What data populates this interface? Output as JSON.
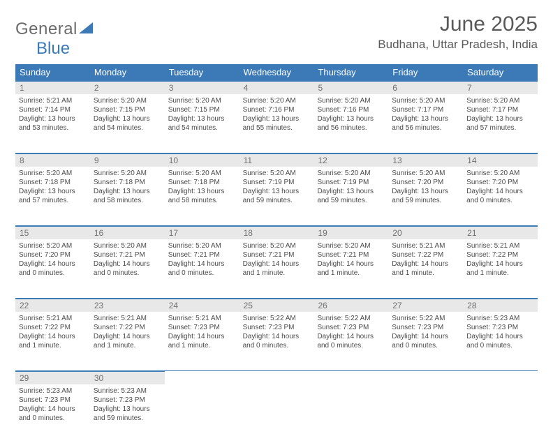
{
  "logo": {
    "text1": "General",
    "text2": "Blue"
  },
  "title": "June 2025",
  "location": "Budhana, Uttar Pradesh, India",
  "colors": {
    "header_bg": "#3b79b7",
    "header_text": "#ffffff",
    "daynum_bg": "#e8e8e8",
    "daynum_border": "#3b79b7",
    "body_text": "#4a4a4a",
    "title_text": "#595959",
    "logo_gray": "#6b6b6b",
    "logo_blue": "#3b79b7"
  },
  "weekdays": [
    "Sunday",
    "Monday",
    "Tuesday",
    "Wednesday",
    "Thursday",
    "Friday",
    "Saturday"
  ],
  "weeks": [
    [
      {
        "n": "1",
        "sr": "Sunrise: 5:21 AM",
        "ss": "Sunset: 7:14 PM",
        "d1": "Daylight: 13 hours",
        "d2": "and 53 minutes."
      },
      {
        "n": "2",
        "sr": "Sunrise: 5:20 AM",
        "ss": "Sunset: 7:15 PM",
        "d1": "Daylight: 13 hours",
        "d2": "and 54 minutes."
      },
      {
        "n": "3",
        "sr": "Sunrise: 5:20 AM",
        "ss": "Sunset: 7:15 PM",
        "d1": "Daylight: 13 hours",
        "d2": "and 54 minutes."
      },
      {
        "n": "4",
        "sr": "Sunrise: 5:20 AM",
        "ss": "Sunset: 7:16 PM",
        "d1": "Daylight: 13 hours",
        "d2": "and 55 minutes."
      },
      {
        "n": "5",
        "sr": "Sunrise: 5:20 AM",
        "ss": "Sunset: 7:16 PM",
        "d1": "Daylight: 13 hours",
        "d2": "and 56 minutes."
      },
      {
        "n": "6",
        "sr": "Sunrise: 5:20 AM",
        "ss": "Sunset: 7:17 PM",
        "d1": "Daylight: 13 hours",
        "d2": "and 56 minutes."
      },
      {
        "n": "7",
        "sr": "Sunrise: 5:20 AM",
        "ss": "Sunset: 7:17 PM",
        "d1": "Daylight: 13 hours",
        "d2": "and 57 minutes."
      }
    ],
    [
      {
        "n": "8",
        "sr": "Sunrise: 5:20 AM",
        "ss": "Sunset: 7:18 PM",
        "d1": "Daylight: 13 hours",
        "d2": "and 57 minutes."
      },
      {
        "n": "9",
        "sr": "Sunrise: 5:20 AM",
        "ss": "Sunset: 7:18 PM",
        "d1": "Daylight: 13 hours",
        "d2": "and 58 minutes."
      },
      {
        "n": "10",
        "sr": "Sunrise: 5:20 AM",
        "ss": "Sunset: 7:18 PM",
        "d1": "Daylight: 13 hours",
        "d2": "and 58 minutes."
      },
      {
        "n": "11",
        "sr": "Sunrise: 5:20 AM",
        "ss": "Sunset: 7:19 PM",
        "d1": "Daylight: 13 hours",
        "d2": "and 59 minutes."
      },
      {
        "n": "12",
        "sr": "Sunrise: 5:20 AM",
        "ss": "Sunset: 7:19 PM",
        "d1": "Daylight: 13 hours",
        "d2": "and 59 minutes."
      },
      {
        "n": "13",
        "sr": "Sunrise: 5:20 AM",
        "ss": "Sunset: 7:20 PM",
        "d1": "Daylight: 13 hours",
        "d2": "and 59 minutes."
      },
      {
        "n": "14",
        "sr": "Sunrise: 5:20 AM",
        "ss": "Sunset: 7:20 PM",
        "d1": "Daylight: 14 hours",
        "d2": "and 0 minutes."
      }
    ],
    [
      {
        "n": "15",
        "sr": "Sunrise: 5:20 AM",
        "ss": "Sunset: 7:20 PM",
        "d1": "Daylight: 14 hours",
        "d2": "and 0 minutes."
      },
      {
        "n": "16",
        "sr": "Sunrise: 5:20 AM",
        "ss": "Sunset: 7:21 PM",
        "d1": "Daylight: 14 hours",
        "d2": "and 0 minutes."
      },
      {
        "n": "17",
        "sr": "Sunrise: 5:20 AM",
        "ss": "Sunset: 7:21 PM",
        "d1": "Daylight: 14 hours",
        "d2": "and 0 minutes."
      },
      {
        "n": "18",
        "sr": "Sunrise: 5:20 AM",
        "ss": "Sunset: 7:21 PM",
        "d1": "Daylight: 14 hours",
        "d2": "and 1 minute."
      },
      {
        "n": "19",
        "sr": "Sunrise: 5:20 AM",
        "ss": "Sunset: 7:21 PM",
        "d1": "Daylight: 14 hours",
        "d2": "and 1 minute."
      },
      {
        "n": "20",
        "sr": "Sunrise: 5:21 AM",
        "ss": "Sunset: 7:22 PM",
        "d1": "Daylight: 14 hours",
        "d2": "and 1 minute."
      },
      {
        "n": "21",
        "sr": "Sunrise: 5:21 AM",
        "ss": "Sunset: 7:22 PM",
        "d1": "Daylight: 14 hours",
        "d2": "and 1 minute."
      }
    ],
    [
      {
        "n": "22",
        "sr": "Sunrise: 5:21 AM",
        "ss": "Sunset: 7:22 PM",
        "d1": "Daylight: 14 hours",
        "d2": "and 1 minute."
      },
      {
        "n": "23",
        "sr": "Sunrise: 5:21 AM",
        "ss": "Sunset: 7:22 PM",
        "d1": "Daylight: 14 hours",
        "d2": "and 1 minute."
      },
      {
        "n": "24",
        "sr": "Sunrise: 5:21 AM",
        "ss": "Sunset: 7:23 PM",
        "d1": "Daylight: 14 hours",
        "d2": "and 1 minute."
      },
      {
        "n": "25",
        "sr": "Sunrise: 5:22 AM",
        "ss": "Sunset: 7:23 PM",
        "d1": "Daylight: 14 hours",
        "d2": "and 0 minutes."
      },
      {
        "n": "26",
        "sr": "Sunrise: 5:22 AM",
        "ss": "Sunset: 7:23 PM",
        "d1": "Daylight: 14 hours",
        "d2": "and 0 minutes."
      },
      {
        "n": "27",
        "sr": "Sunrise: 5:22 AM",
        "ss": "Sunset: 7:23 PM",
        "d1": "Daylight: 14 hours",
        "d2": "and 0 minutes."
      },
      {
        "n": "28",
        "sr": "Sunrise: 5:23 AM",
        "ss": "Sunset: 7:23 PM",
        "d1": "Daylight: 14 hours",
        "d2": "and 0 minutes."
      }
    ],
    [
      {
        "n": "29",
        "sr": "Sunrise: 5:23 AM",
        "ss": "Sunset: 7:23 PM",
        "d1": "Daylight: 14 hours",
        "d2": "and 0 minutes."
      },
      {
        "n": "30",
        "sr": "Sunrise: 5:23 AM",
        "ss": "Sunset: 7:23 PM",
        "d1": "Daylight: 13 hours",
        "d2": "and 59 minutes."
      },
      null,
      null,
      null,
      null,
      null
    ]
  ]
}
